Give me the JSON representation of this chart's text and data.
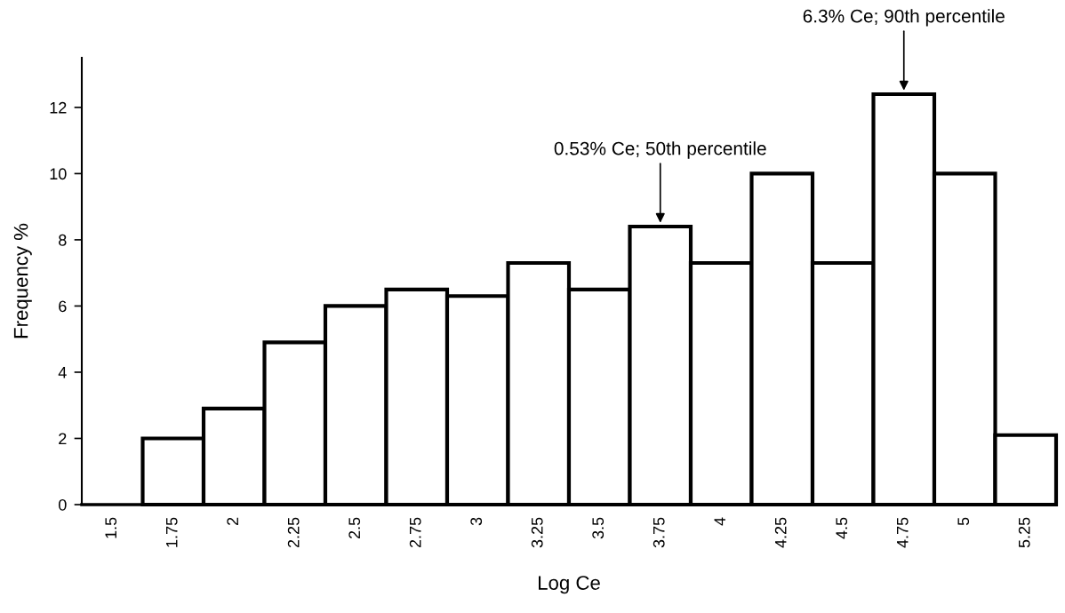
{
  "chart_data": {
    "type": "histogram",
    "xlabel": "Log Ce",
    "ylabel": "Frequency %",
    "bins": [
      1.375,
      1.625,
      1.875,
      2.125,
      2.375,
      2.625,
      2.875,
      3.125,
      3.375,
      3.625,
      3.875,
      4.125,
      4.375,
      4.625,
      4.875,
      5.125,
      5.375
    ],
    "values": [
      0,
      2,
      2.9,
      4.9,
      6.0,
      6.5,
      6.3,
      7.3,
      6.5,
      8.4,
      7.3,
      10.0,
      7.3,
      12.4,
      10.0,
      2.1
    ],
    "color": "#ffffff",
    "xlim": [
      1.375,
      5.375
    ],
    "xticks": [
      1.5,
      1.75,
      2,
      2.25,
      2.5,
      2.75,
      3,
      3.25,
      3.5,
      3.75,
      4,
      4.25,
      4.5,
      4.75,
      5,
      5.25
    ],
    "ylim": [
      0,
      13.5
    ],
    "yticks": [
      0,
      2,
      4,
      6,
      8,
      10,
      12
    ],
    "annotations": [
      {
        "text": "0.53% Ce; 50th percentile",
        "x": 3.75,
        "y": 8.4
      },
      {
        "text": "6.3% Ce; 90th percentile",
        "x": 4.75,
        "y": 12.4
      }
    ]
  }
}
